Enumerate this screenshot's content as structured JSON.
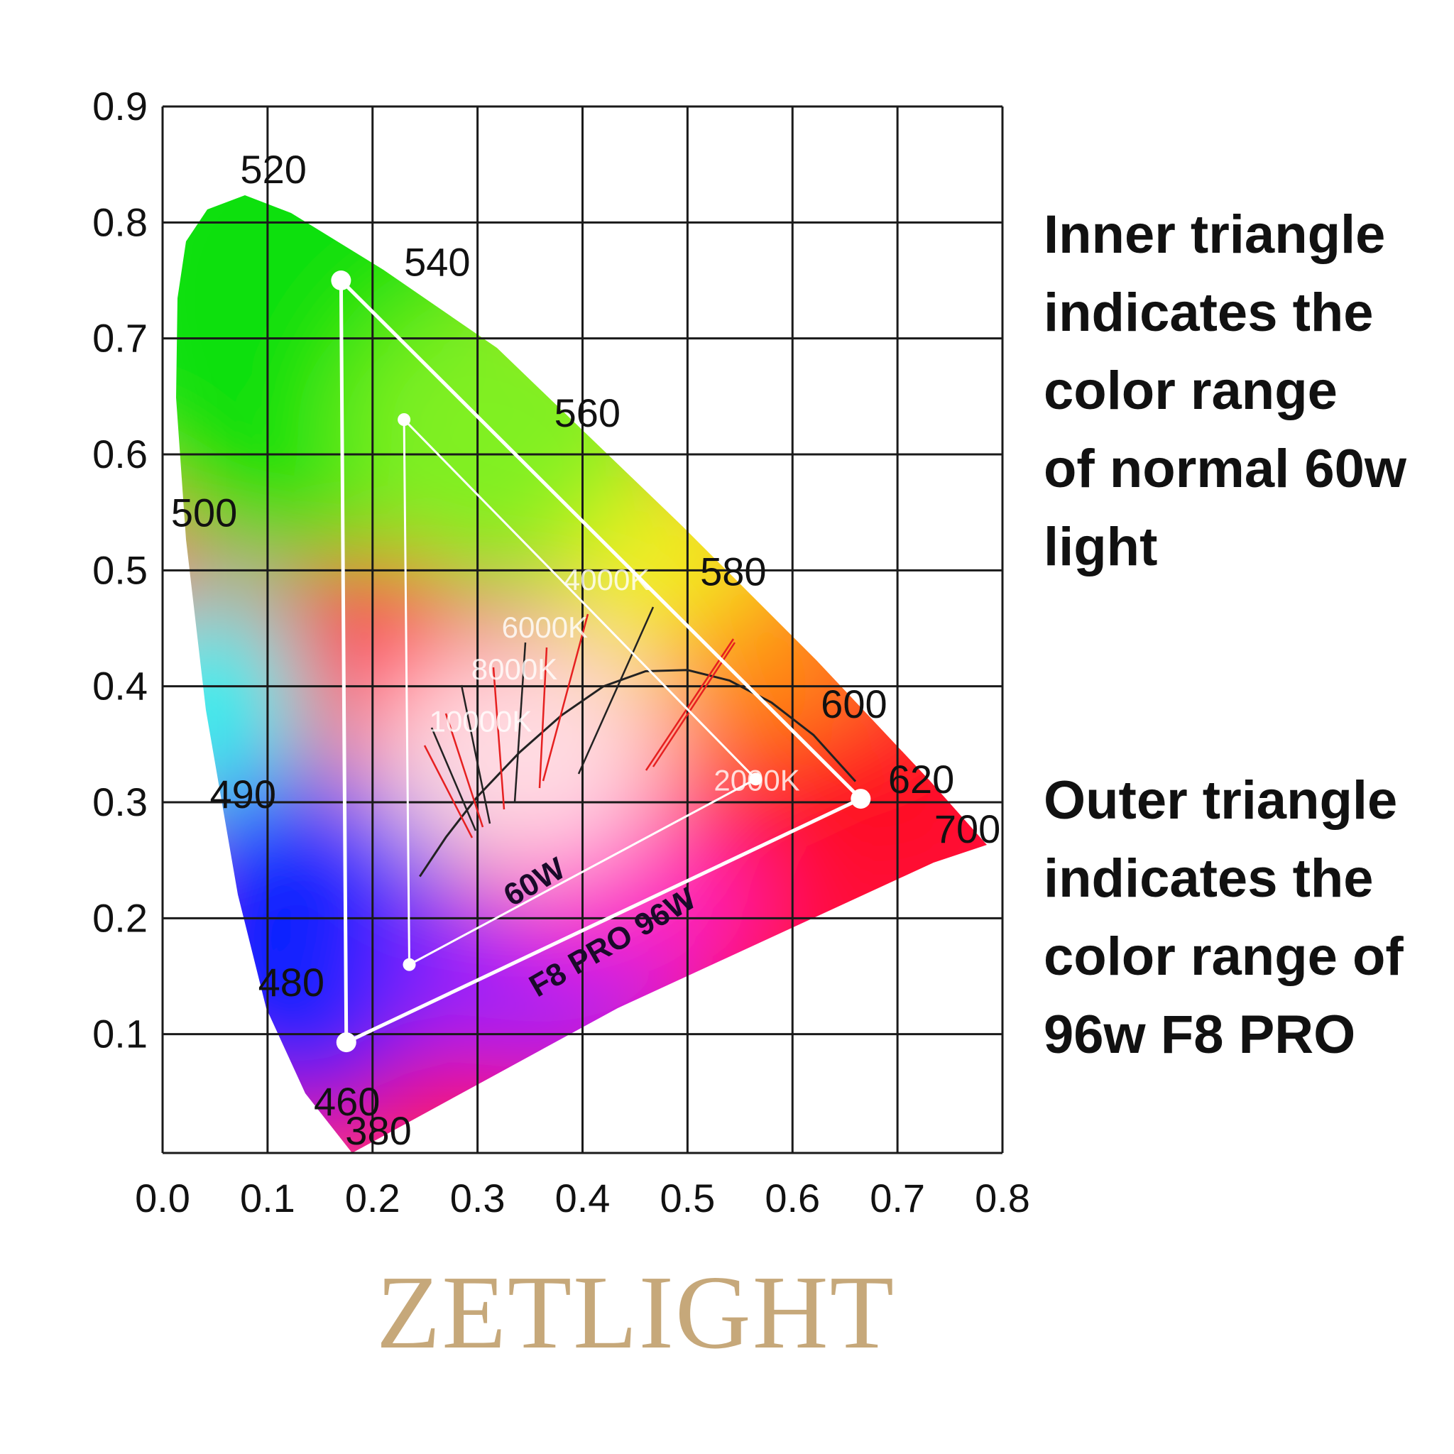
{
  "chart_data": {
    "type": "scatter",
    "title": "",
    "xlabel": "",
    "ylabel": "",
    "xlim": [
      0,
      0.8
    ],
    "ylim": [
      0,
      0.9
    ],
    "x_ticks": [
      "0.0",
      "0.1",
      "0.2",
      "0.3",
      "0.4",
      "0.5",
      "0.6",
      "0.7",
      "0.8"
    ],
    "y_ticks": [
      "0.1",
      "0.2",
      "0.3",
      "0.4",
      "0.5",
      "0.6",
      "0.7",
      "0.8",
      "0.9"
    ],
    "grid": true,
    "spectral_locus_labels": [
      {
        "text": "520",
        "x": 0.074,
        "y": 0.834
      },
      {
        "text": "540",
        "x": 0.23,
        "y": 0.754
      },
      {
        "text": "560",
        "x": 0.373,
        "y": 0.624
      },
      {
        "text": "580",
        "x": 0.512,
        "y": 0.487
      },
      {
        "text": "600",
        "x": 0.627,
        "y": 0.373
      },
      {
        "text": "620",
        "x": 0.691,
        "y": 0.308
      },
      {
        "text": "700",
        "x": 0.735,
        "y": 0.265
      },
      {
        "text": "500",
        "x": 0.008,
        "y": 0.538
      },
      {
        "text": "490",
        "x": 0.045,
        "y": 0.295
      },
      {
        "text": "480",
        "x": 0.091,
        "y": 0.133
      },
      {
        "text": "460",
        "x": 0.144,
        "y": 0.03
      },
      {
        "text": "380",
        "x": 0.174,
        "y": 0.005
      }
    ],
    "cct_labels": [
      {
        "text": "4000K",
        "x": 0.382,
        "y": 0.483
      },
      {
        "text": "6000K",
        "x": 0.323,
        "y": 0.442
      },
      {
        "text": "8000K",
        "x": 0.294,
        "y": 0.406
      },
      {
        "text": "10000K",
        "x": 0.254,
        "y": 0.361
      },
      {
        "text": "2000K",
        "x": 0.525,
        "y": 0.31
      }
    ],
    "series": [
      {
        "name": "60W",
        "points": [
          [
            0.23,
            0.63
          ],
          [
            0.565,
            0.32
          ],
          [
            0.235,
            0.16
          ]
        ]
      },
      {
        "name": "F8 PRO 96W",
        "points": [
          [
            0.17,
            0.75
          ],
          [
            0.665,
            0.303
          ],
          [
            0.175,
            0.093
          ]
        ]
      }
    ],
    "planckian_locus": [
      [
        0.245,
        0.236
      ],
      [
        0.27,
        0.27
      ],
      [
        0.3,
        0.305
      ],
      [
        0.34,
        0.343
      ],
      [
        0.38,
        0.375
      ],
      [
        0.42,
        0.4
      ],
      [
        0.46,
        0.413
      ],
      [
        0.5,
        0.414
      ],
      [
        0.54,
        0.405
      ],
      [
        0.58,
        0.386
      ],
      [
        0.62,
        0.358
      ],
      [
        0.66,
        0.318
      ]
    ]
  },
  "notes": {
    "inner": "Inner triangle\nindicates the\ncolor range\nof normal 60w\nlight",
    "outer": "Outer triangle\nindicates the\ncolor range of\n96w F8 PRO"
  },
  "brand": "ZETLIGHT",
  "colors": {
    "grid": "#1a1a1a",
    "brand": "#c6a87a",
    "triangle": "#ffffff",
    "planck": "#222222",
    "isotemp_red": "#e62020"
  }
}
